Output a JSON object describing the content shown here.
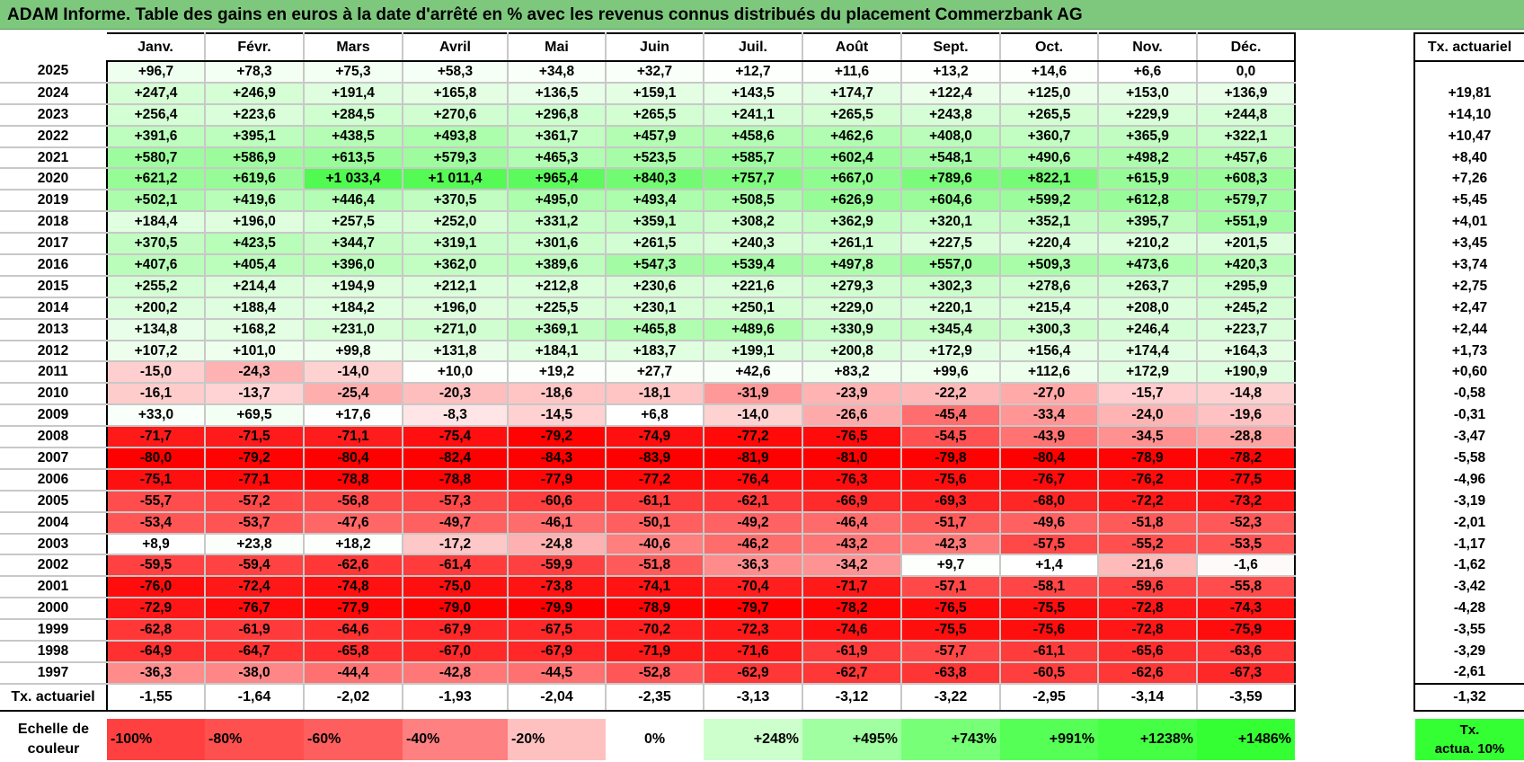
{
  "title": "ADAM Informe. Table des gains en euros à la date d'arrêté en % avec les revenus connus distribués du placement Commerzbank AG",
  "chart_data": {
    "type": "heatmap",
    "title": "ADAM Informe. Table des gains en euros à la date d'arrêté en % avec les revenus connus distribués du placement Commerzbank AG",
    "columns": [
      "Janv.",
      "Févr.",
      "Mars",
      "Avril",
      "Mai",
      "Juin",
      "Juil.",
      "Août",
      "Sept.",
      "Oct.",
      "Nov.",
      "Déc."
    ],
    "side_header": "Tx. actuariel",
    "rows": [
      {
        "year": "2025",
        "values": [
          "+96,7",
          "+78,3",
          "+75,3",
          "+58,3",
          "+34,8",
          "+32,7",
          "+12,7",
          "+11,6",
          "+13,2",
          "+14,6",
          "+6,6",
          "0,0"
        ],
        "tx": ""
      },
      {
        "year": "2024",
        "values": [
          "+247,4",
          "+246,9",
          "+191,4",
          "+165,8",
          "+136,5",
          "+159,1",
          "+143,5",
          "+174,7",
          "+122,4",
          "+125,0",
          "+153,0",
          "+136,9"
        ],
        "tx": "+19,81"
      },
      {
        "year": "2023",
        "values": [
          "+256,4",
          "+223,6",
          "+284,5",
          "+270,6",
          "+296,8",
          "+265,5",
          "+241,1",
          "+265,5",
          "+243,8",
          "+265,5",
          "+229,9",
          "+244,8"
        ],
        "tx": "+14,10"
      },
      {
        "year": "2022",
        "values": [
          "+391,6",
          "+395,1",
          "+438,5",
          "+493,8",
          "+361,7",
          "+457,9",
          "+458,6",
          "+462,6",
          "+408,0",
          "+360,7",
          "+365,9",
          "+322,1"
        ],
        "tx": "+10,47"
      },
      {
        "year": "2021",
        "values": [
          "+580,7",
          "+586,9",
          "+613,5",
          "+579,3",
          "+465,3",
          "+523,5",
          "+585,7",
          "+602,4",
          "+548,1",
          "+490,6",
          "+498,2",
          "+457,6"
        ],
        "tx": "+8,40"
      },
      {
        "year": "2020",
        "values": [
          "+621,2",
          "+619,6",
          "+1 033,4",
          "+1 011,4",
          "+965,4",
          "+840,3",
          "+757,7",
          "+667,0",
          "+789,6",
          "+822,1",
          "+615,9",
          "+608,3"
        ],
        "tx": "+7,26"
      },
      {
        "year": "2019",
        "values": [
          "+502,1",
          "+419,6",
          "+446,4",
          "+370,5",
          "+495,0",
          "+493,4",
          "+508,5",
          "+626,9",
          "+604,6",
          "+599,2",
          "+612,8",
          "+579,7"
        ],
        "tx": "+5,45"
      },
      {
        "year": "2018",
        "values": [
          "+184,4",
          "+196,0",
          "+257,5",
          "+252,0",
          "+331,2",
          "+359,1",
          "+308,2",
          "+362,9",
          "+320,1",
          "+352,1",
          "+395,7",
          "+551,9"
        ],
        "tx": "+4,01"
      },
      {
        "year": "2017",
        "values": [
          "+370,5",
          "+423,5",
          "+344,7",
          "+319,1",
          "+301,6",
          "+261,5",
          "+240,3",
          "+261,1",
          "+227,5",
          "+220,4",
          "+210,2",
          "+201,5"
        ],
        "tx": "+3,45"
      },
      {
        "year": "2016",
        "values": [
          "+407,6",
          "+405,4",
          "+396,0",
          "+362,0",
          "+389,6",
          "+547,3",
          "+539,4",
          "+497,8",
          "+557,0",
          "+509,3",
          "+473,6",
          "+420,3"
        ],
        "tx": "+3,74"
      },
      {
        "year": "2015",
        "values": [
          "+255,2",
          "+214,4",
          "+194,9",
          "+212,1",
          "+212,8",
          "+230,6",
          "+221,6",
          "+279,3",
          "+302,3",
          "+278,6",
          "+263,7",
          "+295,9"
        ],
        "tx": "+2,75"
      },
      {
        "year": "2014",
        "values": [
          "+200,2",
          "+188,4",
          "+184,2",
          "+196,0",
          "+225,5",
          "+230,1",
          "+250,1",
          "+229,0",
          "+220,1",
          "+215,4",
          "+208,0",
          "+245,2"
        ],
        "tx": "+2,47"
      },
      {
        "year": "2013",
        "values": [
          "+134,8",
          "+168,2",
          "+231,0",
          "+271,0",
          "+369,1",
          "+465,8",
          "+489,6",
          "+330,9",
          "+345,4",
          "+300,3",
          "+246,4",
          "+223,7"
        ],
        "tx": "+2,44"
      },
      {
        "year": "2012",
        "values": [
          "+107,2",
          "+101,0",
          "+99,8",
          "+131,8",
          "+184,1",
          "+183,7",
          "+199,1",
          "+200,8",
          "+172,9",
          "+156,4",
          "+174,4",
          "+164,3"
        ],
        "tx": "+1,73"
      },
      {
        "year": "2011",
        "values": [
          "-15,0",
          "-24,3",
          "-14,0",
          "+10,0",
          "+19,2",
          "+27,7",
          "+42,6",
          "+83,2",
          "+99,6",
          "+112,6",
          "+172,9",
          "+190,9"
        ],
        "tx": "+0,60"
      },
      {
        "year": "2010",
        "values": [
          "-16,1",
          "-13,7",
          "-25,4",
          "-20,3",
          "-18,6",
          "-18,1",
          "-31,9",
          "-23,9",
          "-22,2",
          "-27,0",
          "-15,7",
          "-14,8"
        ],
        "tx": "-0,58"
      },
      {
        "year": "2009",
        "values": [
          "+33,0",
          "+69,5",
          "+17,6",
          "-8,3",
          "-14,5",
          "+6,8",
          "-14,0",
          "-26,6",
          "-45,4",
          "-33,4",
          "-24,0",
          "-19,6"
        ],
        "tx": "-0,31"
      },
      {
        "year": "2008",
        "values": [
          "-71,7",
          "-71,5",
          "-71,1",
          "-75,4",
          "-79,2",
          "-74,9",
          "-77,2",
          "-76,5",
          "-54,5",
          "-43,9",
          "-34,5",
          "-28,8"
        ],
        "tx": "-3,47"
      },
      {
        "year": "2007",
        "values": [
          "-80,0",
          "-79,2",
          "-80,4",
          "-82,4",
          "-84,3",
          "-83,9",
          "-81,9",
          "-81,0",
          "-79,8",
          "-80,4",
          "-78,9",
          "-78,2"
        ],
        "tx": "-5,58"
      },
      {
        "year": "2006",
        "values": [
          "-75,1",
          "-77,1",
          "-78,8",
          "-78,8",
          "-77,9",
          "-77,2",
          "-76,4",
          "-76,3",
          "-75,6",
          "-76,7",
          "-76,2",
          "-77,5"
        ],
        "tx": "-4,96"
      },
      {
        "year": "2005",
        "values": [
          "-55,7",
          "-57,2",
          "-56,8",
          "-57,3",
          "-60,6",
          "-61,1",
          "-62,1",
          "-66,9",
          "-69,3",
          "-68,0",
          "-72,2",
          "-73,2"
        ],
        "tx": "-3,19"
      },
      {
        "year": "2004",
        "values": [
          "-53,4",
          "-53,7",
          "-47,6",
          "-49,7",
          "-46,1",
          "-50,1",
          "-49,2",
          "-46,4",
          "-51,7",
          "-49,6",
          "-51,8",
          "-52,3"
        ],
        "tx": "-2,01"
      },
      {
        "year": "2003",
        "values": [
          "+8,9",
          "+23,8",
          "+18,2",
          "-17,2",
          "-24,8",
          "-40,6",
          "-46,2",
          "-43,2",
          "-42,3",
          "-57,5",
          "-55,2",
          "-53,5"
        ],
        "tx": "-1,17"
      },
      {
        "year": "2002",
        "values": [
          "-59,5",
          "-59,4",
          "-62,6",
          "-61,4",
          "-59,9",
          "-51,8",
          "-36,3",
          "-34,2",
          "+9,7",
          "+1,4",
          "-21,6",
          "-1,6"
        ],
        "tx": "-1,62"
      },
      {
        "year": "2001",
        "values": [
          "-76,0",
          "-72,4",
          "-74,8",
          "-75,0",
          "-73,8",
          "-74,1",
          "-70,4",
          "-71,7",
          "-57,1",
          "-58,1",
          "-59,6",
          "-55,8"
        ],
        "tx": "-3,42"
      },
      {
        "year": "2000",
        "values": [
          "-72,9",
          "-76,7",
          "-77,9",
          "-79,0",
          "-79,9",
          "-78,9",
          "-79,7",
          "-78,2",
          "-76,5",
          "-75,5",
          "-72,8",
          "-74,3"
        ],
        "tx": "-4,28"
      },
      {
        "year": "1999",
        "values": [
          "-62,8",
          "-61,9",
          "-64,6",
          "-67,9",
          "-67,5",
          "-70,2",
          "-72,3",
          "-74,6",
          "-75,5",
          "-75,6",
          "-72,8",
          "-75,9"
        ],
        "tx": "-3,55"
      },
      {
        "year": "1998",
        "values": [
          "-64,9",
          "-64,7",
          "-65,8",
          "-67,0",
          "-67,9",
          "-71,9",
          "-71,6",
          "-61,9",
          "-57,7",
          "-61,1",
          "-65,6",
          "-63,6"
        ],
        "tx": "-3,29"
      },
      {
        "year": "1997",
        "values": [
          "-36,3",
          "-38,0",
          "-44,4",
          "-42,8",
          "-44,5",
          "-52,8",
          "-62,9",
          "-62,7",
          "-63,8",
          "-60,5",
          "-62,6",
          "-67,3"
        ],
        "tx": "-2,61"
      }
    ],
    "footer": {
      "label": "Tx. actuariel",
      "values": [
        "-1,55",
        "-1,64",
        "-2,02",
        "-1,93",
        "-2,04",
        "-2,35",
        "-3,13",
        "-3,12",
        "-3,22",
        "-2,95",
        "-3,14",
        "-3,59"
      ],
      "tx": "-1,32"
    },
    "legend": {
      "label_line1": "Echelle de",
      "label_line2": "couleur",
      "items": [
        "-100%",
        "-80%",
        "-60%",
        "-40%",
        "-20%",
        "0%",
        "+248%",
        "+495%",
        "+743%",
        "+991%",
        "+1238%",
        "+1486%"
      ],
      "tx_line1": "Tx.",
      "tx_line2": "actua. 10%"
    },
    "colors": {
      "title_bg": "#7ec87e",
      "negative_max": "#ff0000",
      "positive_max": "#33ff33",
      "neutral": "#ffffff"
    }
  }
}
